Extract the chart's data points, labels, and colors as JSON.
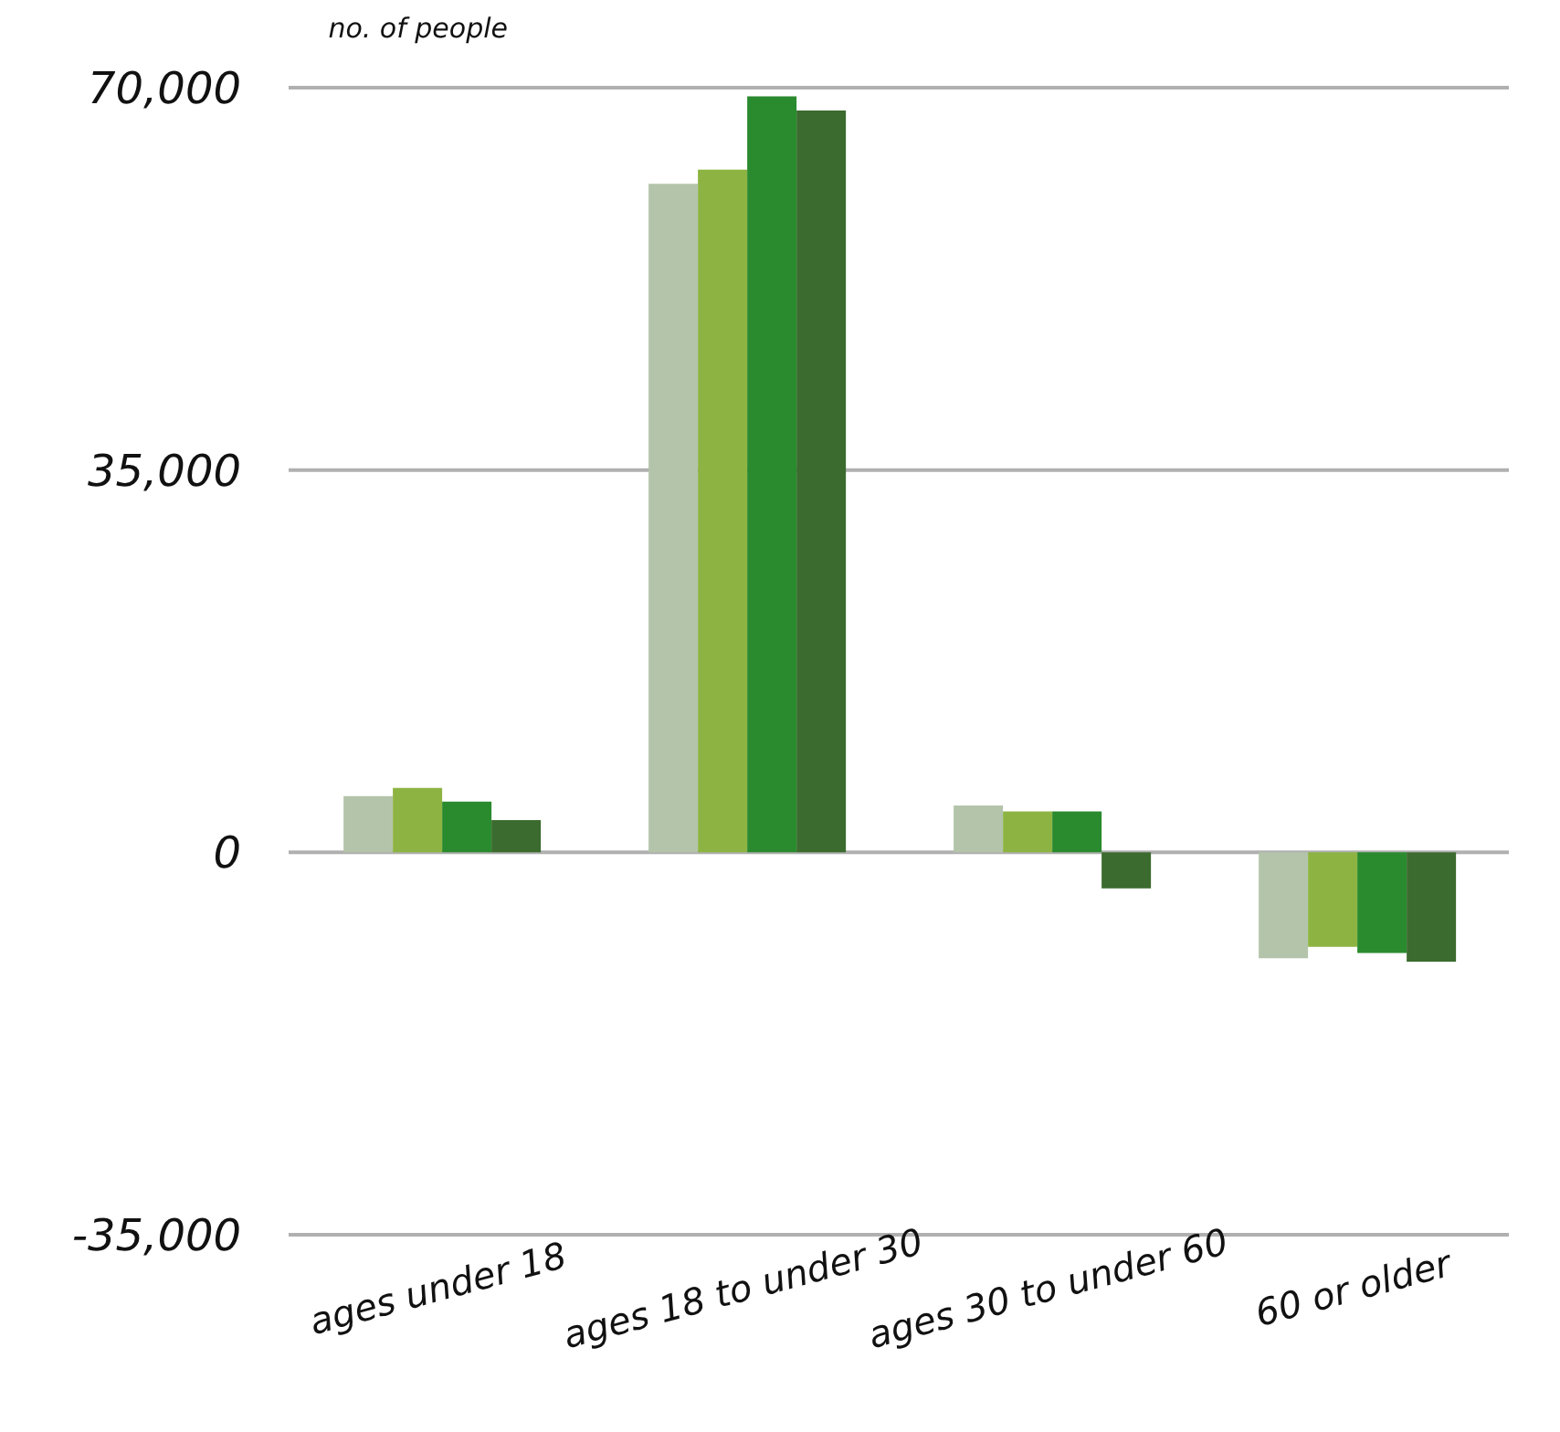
{
  "chart_data": {
    "type": "bar",
    "ylabel": "no. of people",
    "categories": [
      "ages under 18",
      "ages 18 to under 30",
      "ages 30 to under 60",
      "60 or older"
    ],
    "series": [
      {
        "color": "#b3c4ab",
        "values": [
          5150,
          61200,
          4300,
          -9700
        ]
      },
      {
        "color": "#8db442",
        "values": [
          5900,
          62500,
          3750,
          -8650
        ]
      },
      {
        "color": "#2a8a2e",
        "values": [
          4650,
          69200,
          3750,
          -9200
        ]
      },
      {
        "color": "#3b6b2e",
        "values": [
          2950,
          67900,
          -3300,
          -10000
        ]
      }
    ],
    "ylim": [
      -35000,
      70000
    ],
    "yticks": [
      {
        "value": -35000,
        "label": "-35,000"
      },
      0,
      {
        "value": 35000,
        "label": "35,000"
      },
      {
        "value": 70000,
        "label": "70,000"
      }
    ],
    "grid": "y"
  }
}
